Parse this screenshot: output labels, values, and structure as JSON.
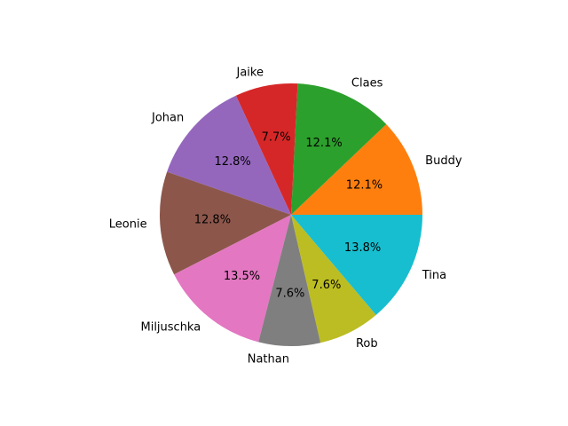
{
  "chart_data": {
    "type": "pie",
    "title": "",
    "start_angle_deg": 0,
    "direction": "counterclockwise",
    "slices": [
      {
        "label": "Buddy",
        "percent": 12.1,
        "pct_text": "12.1%",
        "color": "#ff7f0e"
      },
      {
        "label": "Claes",
        "percent": 12.1,
        "pct_text": "12.1%",
        "color": "#2ca02c"
      },
      {
        "label": "Jaike",
        "percent": 7.7,
        "pct_text": "7.7%",
        "color": "#d62728"
      },
      {
        "label": "Johan",
        "percent": 12.8,
        "pct_text": "12.8%",
        "color": "#9467bd"
      },
      {
        "label": "Leonie",
        "percent": 12.8,
        "pct_text": "12.8%",
        "color": "#8c564b"
      },
      {
        "label": "Miljuschka",
        "percent": 13.5,
        "pct_text": "13.5%",
        "color": "#e377c2"
      },
      {
        "label": "Nathan",
        "percent": 7.6,
        "pct_text": "7.6%",
        "color": "#7f7f7f"
      },
      {
        "label": "Rob",
        "percent": 7.6,
        "pct_text": "7.6%",
        "color": "#bcbd22"
      },
      {
        "label": "Tina",
        "percent": 13.8,
        "pct_text": "13.8%",
        "color": "#17becf"
      }
    ]
  }
}
